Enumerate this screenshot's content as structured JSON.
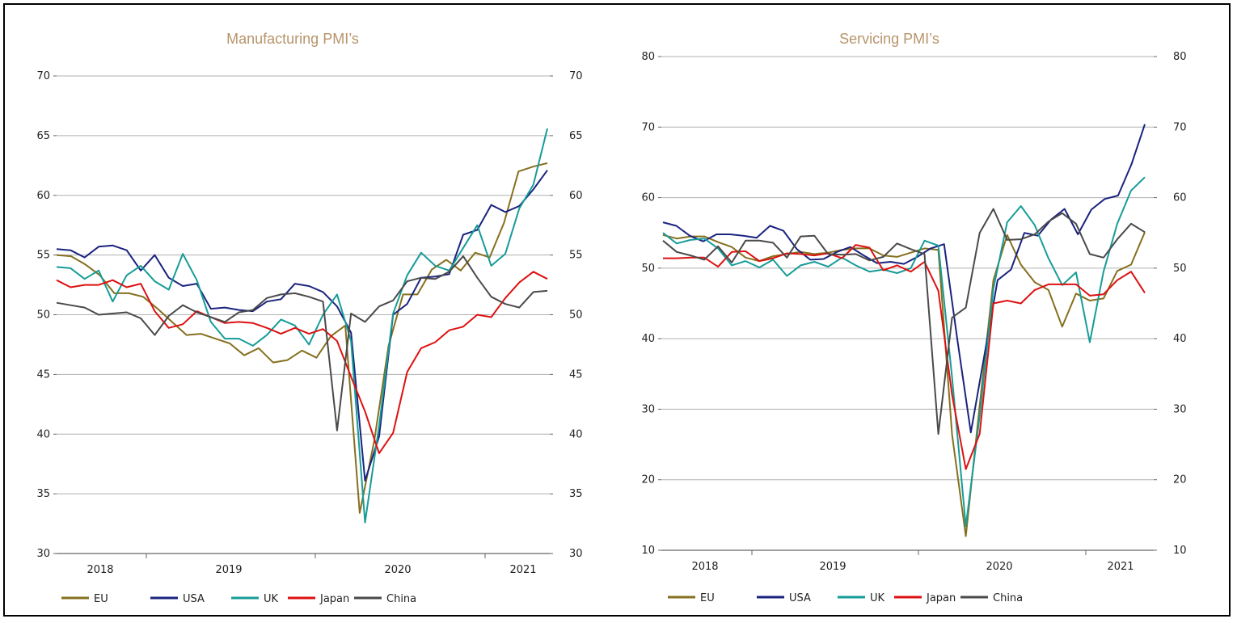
{
  "chart_data": [
    {
      "type": "line",
      "title": "Manufacturing PMI’s",
      "ylim": [
        30,
        70
      ],
      "yticks": [
        30,
        35,
        40,
        45,
        50,
        55,
        60,
        65,
        70
      ],
      "dual_axis": true,
      "grid": true,
      "legend_position": "bottom",
      "year_labels": [
        "2018",
        "2019",
        "2020",
        "2021"
      ],
      "series": [
        {
          "name": "EU",
          "color": "#85701f",
          "values": [
            55.0,
            54.9,
            54.2,
            53.3,
            51.8,
            51.8,
            51.5,
            50.5,
            49.4,
            48.3,
            48.4,
            48.0,
            47.6,
            46.6,
            47.2,
            46.0,
            46.2,
            47.0,
            46.4,
            48.2,
            49.1,
            33.4,
            39.4,
            47.4,
            51.7,
            51.7,
            53.8,
            54.6,
            53.7,
            55.2,
            54.8,
            57.7,
            62.0,
            62.4,
            62.7
          ]
        },
        {
          "name": "USA",
          "color": "#1a237e",
          "values": [
            55.5,
            55.4,
            54.8,
            55.7,
            55.8,
            55.4,
            53.7,
            55.0,
            53.1,
            52.4,
            52.6,
            50.5,
            50.6,
            50.4,
            50.3,
            51.1,
            51.3,
            52.6,
            52.4,
            51.9,
            50.7,
            48.5,
            36.1,
            39.8,
            50.0,
            50.9,
            53.1,
            53.2,
            53.4,
            56.7,
            57.1,
            59.2,
            58.6,
            59.1,
            60.5,
            62.1
          ]
        },
        {
          "name": "UK",
          "color": "#169c98",
          "values": [
            54.0,
            53.9,
            53.0,
            53.7,
            51.1,
            53.3,
            54.1,
            52.8,
            52.1,
            55.1,
            52.9,
            49.4,
            48.0,
            48.0,
            47.4,
            48.3,
            49.6,
            49.1,
            47.5,
            50.0,
            51.7,
            47.8,
            32.6,
            40.7,
            50.1,
            53.3,
            55.2,
            54.1,
            53.7,
            55.6,
            57.5,
            54.1,
            55.1,
            58.9,
            60.9,
            65.6
          ]
        },
        {
          "name": "Japan",
          "color": "#dd1111",
          "values": [
            52.9,
            52.3,
            52.5,
            52.5,
            52.9,
            52.3,
            52.6,
            50.3,
            48.9,
            49.2,
            50.3,
            49.8,
            49.3,
            49.4,
            49.3,
            48.9,
            48.4,
            48.9,
            48.4,
            48.8,
            47.8,
            44.8,
            41.9,
            38.4,
            40.1,
            45.2,
            47.2,
            47.7,
            48.7,
            49.0,
            50.0,
            49.8,
            51.4,
            52.7,
            53.6,
            53.0
          ]
        },
        {
          "name": "China",
          "color": "#4a4a4a",
          "values": [
            51.0,
            50.8,
            50.6,
            50.0,
            50.1,
            50.2,
            49.7,
            48.3,
            49.9,
            50.8,
            50.2,
            49.8,
            49.4,
            50.2,
            50.4,
            51.4,
            51.7,
            51.8,
            51.5,
            51.1,
            40.3,
            50.1,
            49.4,
            50.7,
            51.2,
            52.8,
            53.1,
            53.0,
            53.6,
            54.9,
            53.1,
            51.5,
            50.9,
            50.6,
            51.9,
            52.0
          ]
        }
      ]
    },
    {
      "type": "line",
      "title": "Servicing PMI’s",
      "ylim": [
        10,
        80
      ],
      "yticks": [
        10,
        20,
        30,
        40,
        50,
        60,
        70,
        80
      ],
      "dual_axis": true,
      "grid": true,
      "legend_position": "bottom",
      "year_labels": [
        "2018",
        "2019",
        "2020",
        "2021"
      ],
      "series": [
        {
          "name": "EU",
          "color": "#85701f",
          "values": [
            54.7,
            54.2,
            54.5,
            54.5,
            53.7,
            53.0,
            51.5,
            51.0,
            51.7,
            52.0,
            52.3,
            52.0,
            52.2,
            52.6,
            52.8,
            52.8,
            51.8,
            51.6,
            52.2,
            52.8,
            52.6,
            26.4,
            12.0,
            30.5,
            48.3,
            54.7,
            50.5,
            48.0,
            46.9,
            41.7,
            46.4,
            45.4,
            45.7,
            49.6,
            50.5,
            55.1
          ]
        },
        {
          "name": "USA",
          "color": "#1a237e",
          "values": [
            56.5,
            56.0,
            54.6,
            53.8,
            54.8,
            54.8,
            54.6,
            54.3,
            56.0,
            55.3,
            52.7,
            51.2,
            51.3,
            52.3,
            53.0,
            51.8,
            50.7,
            50.9,
            50.6,
            51.6,
            52.8,
            53.4,
            39.8,
            26.7,
            37.5,
            48.3,
            49.8,
            55.0,
            54.6,
            56.9,
            58.4,
            54.8,
            58.3,
            59.8,
            60.3,
            64.7,
            70.4
          ]
        },
        {
          "name": "UK",
          "color": "#169c98",
          "values": [
            55.0,
            53.5,
            54.0,
            54.2,
            52.8,
            50.4,
            51.0,
            50.1,
            51.2,
            48.9,
            50.4,
            50.9,
            50.2,
            51.5,
            50.4,
            49.5,
            49.8,
            49.3,
            50.0,
            53.9,
            53.2,
            34.5,
            13.4,
            29.0,
            47.1,
            56.5,
            58.8,
            56.1,
            51.4,
            47.6,
            49.4,
            39.5,
            49.5,
            56.3,
            61.0,
            62.9
          ]
        },
        {
          "name": "Japan",
          "color": "#dd1111",
          "values": [
            51.4,
            51.4,
            51.5,
            51.5,
            50.2,
            52.3,
            52.4,
            51.0,
            51.4,
            52.1,
            52.0,
            51.8,
            52.1,
            51.4,
            53.3,
            52.9,
            49.7,
            50.4,
            49.5,
            50.9,
            46.8,
            32.0,
            21.5,
            26.5,
            45.0,
            45.4,
            45.0,
            46.9,
            47.7,
            47.7,
            47.7,
            46.1,
            46.3,
            48.3,
            49.5,
            46.5
          ]
        },
        {
          "name": "China",
          "color": "#4a4a4a",
          "values": [
            53.9,
            52.3,
            51.8,
            51.2,
            53.1,
            50.8,
            53.9,
            53.9,
            53.6,
            51.5,
            54.5,
            54.6,
            52.0,
            51.9,
            52.0,
            51.1,
            51.6,
            53.5,
            52.7,
            52.0,
            26.5,
            43.0,
            44.4,
            55.0,
            58.4,
            54.0,
            54.1,
            54.8,
            56.6,
            57.8,
            56.3,
            52.0,
            51.5,
            54.1,
            56.3,
            55.1
          ]
        }
      ]
    }
  ]
}
